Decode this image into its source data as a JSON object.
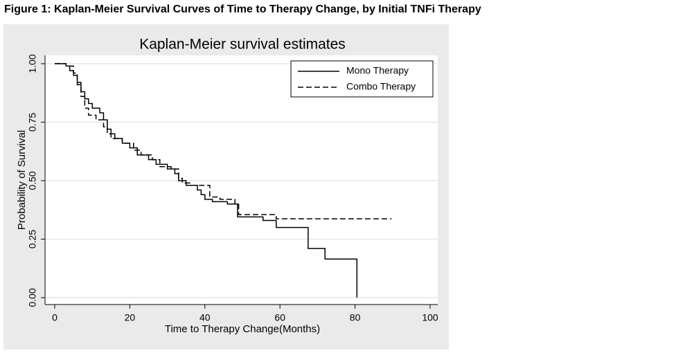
{
  "figure_title": "Figure 1: Kaplan-Meier Survival Curves of Time to Therapy Change, by Initial TNFi Therapy",
  "chart_data": {
    "type": "step",
    "title": "Kaplan-Meier survival estimates",
    "x_label": "Time to Therapy Change(Months)",
    "y_label": "Probability of Survival",
    "xlim": [
      0,
      100
    ],
    "xticks": [
      0,
      20,
      40,
      60,
      80,
      100
    ],
    "ylim": [
      0,
      1
    ],
    "yticks": [
      {
        "value": 0,
        "label": "0.00"
      },
      {
        "value": 0.25,
        "label": "0.25"
      },
      {
        "value": 0.5,
        "label": "0.50"
      },
      {
        "value": 0.75,
        "label": "0.75"
      },
      {
        "value": 1,
        "label": "1.00"
      }
    ],
    "grid": true,
    "legend": "top-right",
    "series": [
      {
        "name": "Mono Therapy",
        "color": "#000000",
        "linestyle": "solid",
        "x": [
          0,
          3,
          4,
          5,
          6,
          7,
          8,
          9,
          10,
          12,
          13,
          14,
          15,
          16,
          18,
          20,
          22,
          25,
          27,
          30,
          32,
          33,
          35,
          38,
          39,
          40,
          42,
          46,
          48.7,
          55.5,
          59,
          66.8,
          67.5,
          72,
          80.5
        ],
        "values": [
          1,
          0.99,
          0.97,
          0.95,
          0.92,
          0.88,
          0.85,
          0.83,
          0.81,
          0.79,
          0.76,
          0.72,
          0.7,
          0.68,
          0.66,
          0.64,
          0.61,
          0.59,
          0.57,
          0.55,
          0.53,
          0.5,
          0.48,
          0.46,
          0.44,
          0.42,
          0.41,
          0.4,
          0.345,
          0.33,
          0.3,
          0.3,
          0.21,
          0.165,
          0
        ]
      },
      {
        "name": "Combo Therapy",
        "color": "#000000",
        "linestyle": "dashed",
        "x": [
          0,
          3,
          5,
          6,
          7,
          8,
          9,
          11,
          13,
          14,
          15,
          18,
          21,
          23,
          26,
          28,
          31,
          33,
          34,
          36,
          41.3,
          44,
          48,
          49,
          59,
          89.7
        ],
        "values": [
          1,
          0.99,
          0.96,
          0.91,
          0.86,
          0.81,
          0.78,
          0.76,
          0.73,
          0.7,
          0.68,
          0.66,
          0.63,
          0.61,
          0.59,
          0.56,
          0.55,
          0.51,
          0.49,
          0.48,
          0.43,
          0.42,
          0.4,
          0.355,
          0.337,
          0.337
        ]
      }
    ]
  }
}
